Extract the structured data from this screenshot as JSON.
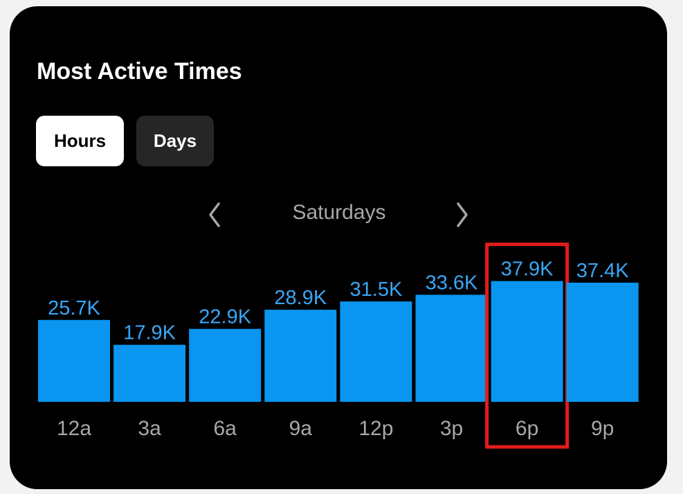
{
  "card": {
    "title": "Most Active Times",
    "tabs": [
      {
        "label": "Hours",
        "selected": true
      },
      {
        "label": "Days",
        "selected": false
      }
    ],
    "period": "Saturdays",
    "icons": {
      "prev": "chevron-left-icon",
      "next": "chevron-right-icon"
    }
  },
  "colors": {
    "background": "#000000",
    "bar": "#0a95f0",
    "value_label": "#3aa6f5",
    "axis_label": "#a8a8a8",
    "highlight": "#e31b1b"
  },
  "chart_data": {
    "type": "bar",
    "categories": [
      "12a",
      "3a",
      "6a",
      "9a",
      "12p",
      "3p",
      "6p",
      "9p"
    ],
    "values": [
      25.7,
      17.9,
      22.9,
      28.9,
      31.5,
      33.6,
      37.9,
      37.4
    ],
    "value_labels": [
      "25.7K",
      "17.9K",
      "22.9K",
      "28.9K",
      "31.5K",
      "33.6K",
      "37.9K",
      "37.4K"
    ],
    "unit": "K",
    "highlighted_category": "6p",
    "grid": false,
    "legend": "none"
  }
}
